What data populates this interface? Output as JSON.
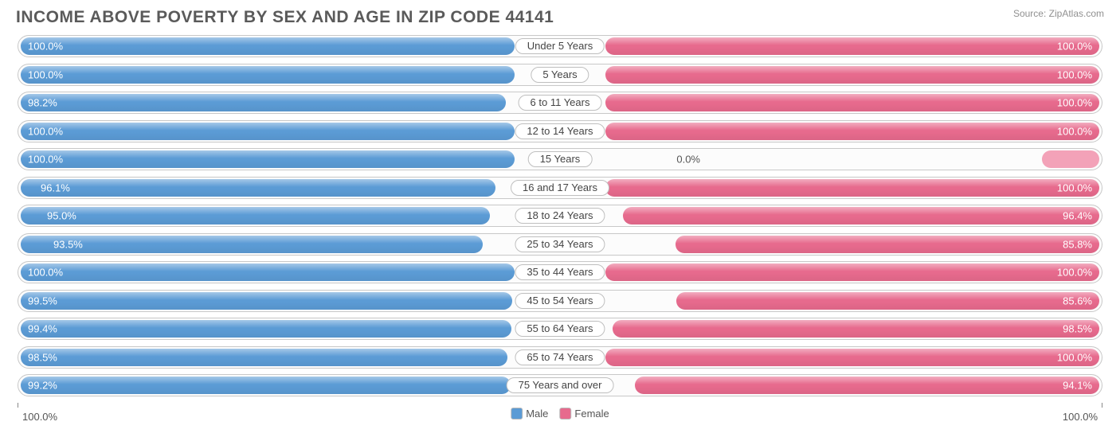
{
  "title": "INCOME ABOVE POVERTY BY SEX AND AGE IN ZIP CODE 44141",
  "source": "Source: ZipAtlas.com",
  "colors": {
    "male": "#5b9bd5",
    "female": "#e76a8d",
    "female_light": "#f3a2b8",
    "border": "#c8c8c8",
    "text": "#5a5a5a"
  },
  "axis": {
    "left": "100.0%",
    "right": "100.0%"
  },
  "legend": {
    "male": "Male",
    "female": "Female"
  },
  "half_width": 620,
  "rows": [
    {
      "label": "Under 5 Years",
      "male": 100.0,
      "female": 100.0,
      "m_off": 0
    },
    {
      "label": "5 Years",
      "male": 100.0,
      "female": 100.0,
      "m_off": 0
    },
    {
      "label": "6 to 11 Years",
      "male": 98.2,
      "female": 100.0,
      "m_off": 0
    },
    {
      "label": "12 to 14 Years",
      "male": 100.0,
      "female": 100.0,
      "m_off": 0
    },
    {
      "label": "15 Years",
      "male": 100.0,
      "female": 0.0,
      "m_off": 0,
      "f_outside": true
    },
    {
      "label": "16 and 17 Years",
      "male": 96.1,
      "female": 100.0,
      "m_off": 1
    },
    {
      "label": "18 to 24 Years",
      "male": 95.0,
      "female": 96.4,
      "m_off": 2
    },
    {
      "label": "25 to 34 Years",
      "male": 93.5,
      "female": 85.8,
      "m_off": 3
    },
    {
      "label": "35 to 44 Years",
      "male": 100.0,
      "female": 100.0,
      "m_off": 0
    },
    {
      "label": "45 to 54 Years",
      "male": 99.5,
      "female": 85.6,
      "m_off": 0
    },
    {
      "label": "55 to 64 Years",
      "male": 99.4,
      "female": 98.5,
      "m_off": 0
    },
    {
      "label": "65 to 74 Years",
      "male": 98.5,
      "female": 100.0,
      "m_off": 0
    },
    {
      "label": "75 Years and over",
      "male": 99.2,
      "female": 94.1,
      "m_off": 0
    }
  ]
}
